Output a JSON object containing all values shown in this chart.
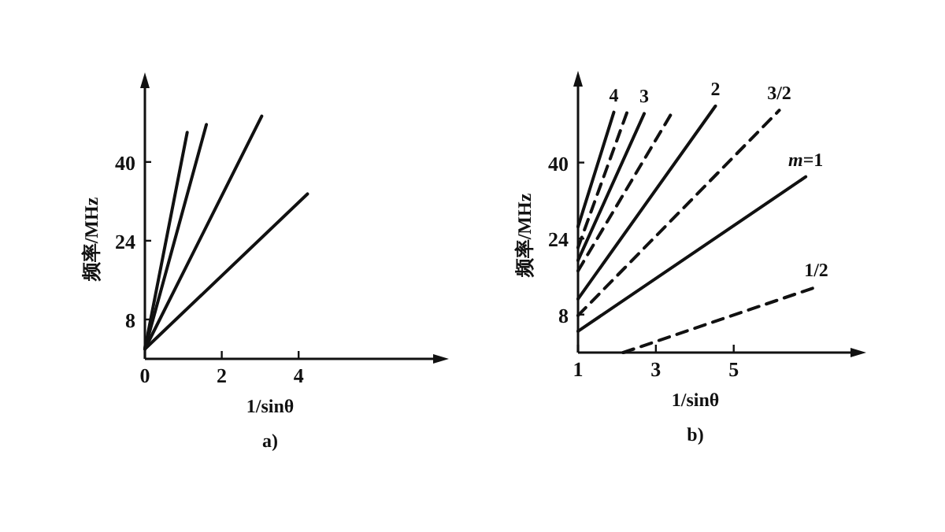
{
  "chart_data": [
    {
      "type": "line",
      "xlabel": "1/sinθ",
      "ylabel": "频率/MHz",
      "annotations": [
        "a)"
      ],
      "xlim": [
        0,
        7.5
      ],
      "ylim": [
        0,
        55
      ],
      "xticks": [
        0,
        2,
        4
      ],
      "yticks": [
        8,
        24,
        40
      ],
      "line_style": "solid",
      "series": [
        {
          "color": "#111111",
          "x": [
            0,
            1.1
          ],
          "values": [
            2,
            46
          ]
        },
        {
          "color": "#111111",
          "x": [
            0,
            1.6
          ],
          "values": [
            2,
            47.6
          ]
        },
        {
          "color": "#111111",
          "x": [
            0,
            3.04
          ],
          "values": [
            2,
            49.3
          ]
        },
        {
          "color": "#111111",
          "x": [
            0,
            4.23
          ],
          "values": [
            2,
            33.5
          ]
        }
      ]
    },
    {
      "type": "line",
      "xlabel": "1/sinθ",
      "ylabel": "频率/MHz",
      "annotations": [
        "b)"
      ],
      "xlim": [
        1,
        8
      ],
      "ylim": [
        0,
        56
      ],
      "xticks": [
        1,
        3,
        5
      ],
      "yticks": [
        8,
        24,
        40
      ],
      "series": [
        {
          "name": "4",
          "color": "#111111",
          "line_style": "solid",
          "x": [
            1,
            1.92
          ],
          "values": [
            26.5,
            50.6
          ]
        },
        {
          "color": "#111111",
          "line_style": "dashed",
          "x": [
            1,
            2.26
          ],
          "values": [
            22.1,
            50.6
          ]
        },
        {
          "name": "3",
          "color": "#111111",
          "line_style": "solid",
          "x": [
            1,
            2.7
          ],
          "values": [
            19.4,
            50.3
          ]
        },
        {
          "color": "#111111",
          "line_style": "dashed",
          "x": [
            1,
            3.42
          ],
          "values": [
            17.2,
            50.6
          ]
        },
        {
          "name": "2",
          "color": "#111111",
          "line_style": "solid",
          "x": [
            1,
            4.53
          ],
          "values": [
            11.3,
            51.9
          ]
        },
        {
          "name": "3/2",
          "color": "#111111",
          "line_style": "dashed",
          "x": [
            1,
            6.17
          ],
          "values": [
            7.8,
            51
          ]
        },
        {
          "name": "*m*=1",
          "color": "#111111",
          "line_style": "solid",
          "x": [
            1,
            6.85
          ],
          "values": [
            4.5,
            37
          ]
        },
        {
          "name": "1/2",
          "color": "#111111",
          "line_style": "dashed",
          "x": [
            2.16,
            7.12
          ],
          "values": [
            0,
            13.8
          ]
        }
      ]
    }
  ]
}
